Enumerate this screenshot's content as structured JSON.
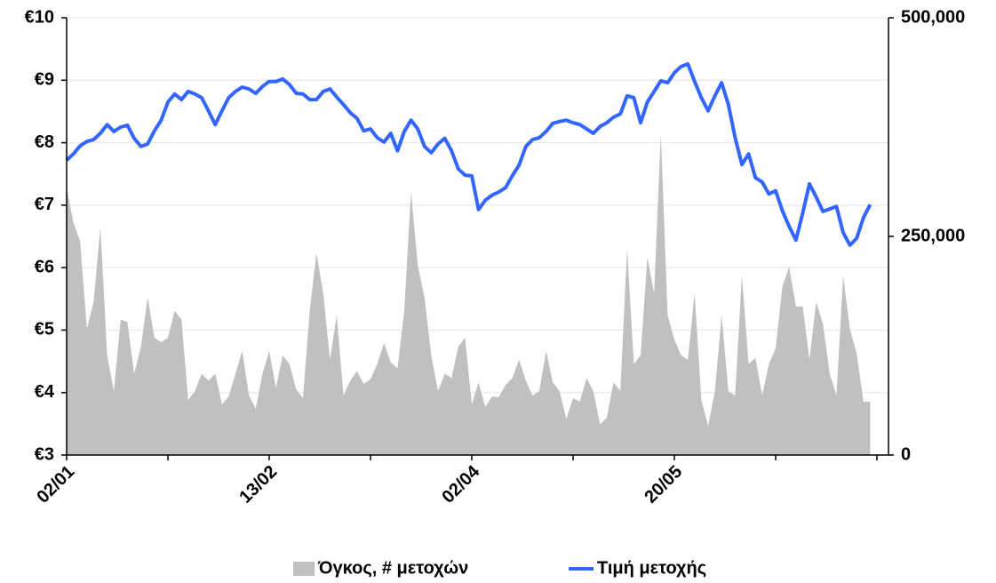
{
  "chart_data": {
    "type": "line",
    "categories": [
      "02/01",
      null,
      null,
      null,
      null,
      null,
      null,
      null,
      null,
      null,
      null,
      null,
      null,
      null,
      null,
      null,
      null,
      null,
      null,
      null,
      null,
      null,
      null,
      null,
      null,
      null,
      null,
      null,
      null,
      null,
      "13/02",
      null,
      null,
      null,
      null,
      null,
      null,
      null,
      null,
      null,
      null,
      null,
      null,
      null,
      null,
      null,
      null,
      null,
      null,
      null,
      null,
      null,
      null,
      null,
      null,
      null,
      null,
      null,
      null,
      null,
      "02/04",
      null,
      null,
      null,
      null,
      null,
      null,
      null,
      null,
      null,
      null,
      null,
      null,
      null,
      null,
      null,
      null,
      null,
      null,
      null,
      null,
      null,
      null,
      null,
      null,
      null,
      null,
      null,
      null,
      null,
      "20/05",
      null,
      null,
      null,
      null,
      null,
      null,
      null,
      null,
      null,
      null,
      null,
      null,
      null,
      null,
      null,
      null,
      null,
      null,
      null,
      null,
      null,
      null,
      null,
      null,
      null,
      null,
      null,
      null,
      null
    ],
    "series": [
      {
        "name": "Όγκος, # μετοχών",
        "type": "area",
        "axis": "y2",
        "color": "#c0c0c0",
        "values": [
          305000,
          266000,
          244000,
          144000,
          175000,
          261000,
          114000,
          73000,
          155000,
          152000,
          93000,
          124000,
          180000,
          134000,
          129000,
          134000,
          165000,
          155000,
          63000,
          73000,
          93000,
          85000,
          93000,
          58000,
          67000,
          93000,
          119000,
          68000,
          53000,
          93000,
          119000,
          77000,
          114000,
          104000,
          75000,
          65000,
          165000,
          231000,
          185000,
          109000,
          160000,
          68000,
          85000,
          96000,
          81000,
          87000,
          104000,
          128000,
          106000,
          99000,
          165000,
          302000,
          217000,
          180000,
          114000,
          73000,
          93000,
          88000,
          124000,
          134000,
          58000,
          83000,
          55000,
          67000,
          66000,
          80000,
          88000,
          109000,
          85000,
          68000,
          73000,
          119000,
          83000,
          73000,
          41000,
          65000,
          61000,
          88000,
          73000,
          35000,
          43000,
          83000,
          73000,
          236000,
          104000,
          114000,
          226000,
          185000,
          368000,
          160000,
          132000,
          114000,
          109000,
          185000,
          63000,
          33000,
          73000,
          160000,
          73000,
          68000,
          205000,
          104000,
          111000,
          68000,
          104000,
          122000,
          193000,
          215000,
          170000,
          170000,
          109000,
          175000,
          150000,
          93000,
          68000,
          205000,
          144000,
          116000,
          61000,
          61000
        ]
      },
      {
        "name": "Τιμή μετοχής",
        "type": "line",
        "color": "#3366ff",
        "values": [
          7.72,
          7.82,
          7.95,
          8.02,
          8.05,
          8.15,
          8.29,
          8.18,
          8.25,
          8.28,
          8.07,
          7.94,
          7.98,
          8.19,
          8.36,
          8.65,
          8.78,
          8.69,
          8.82,
          8.78,
          8.72,
          8.51,
          8.29,
          8.51,
          8.72,
          8.82,
          8.89,
          8.86,
          8.79,
          8.9,
          8.98,
          8.98,
          9.02,
          8.93,
          8.79,
          8.78,
          8.69,
          8.69,
          8.82,
          8.86,
          8.73,
          8.61,
          8.48,
          8.39,
          8.19,
          8.22,
          8.08,
          8.01,
          8.15,
          7.87,
          8.18,
          8.36,
          8.22,
          7.94,
          7.84,
          7.98,
          8.07,
          7.87,
          7.58,
          7.48,
          7.47,
          6.93,
          7.08,
          7.16,
          7.21,
          7.28,
          7.47,
          7.64,
          7.94,
          8.05,
          8.08,
          8.18,
          8.31,
          8.34,
          8.36,
          8.32,
          8.29,
          8.22,
          8.15,
          8.26,
          8.32,
          8.41,
          8.46,
          8.75,
          8.72,
          8.32,
          8.65,
          8.82,
          8.99,
          8.96,
          9.12,
          9.22,
          9.26,
          8.98,
          8.72,
          8.51,
          8.75,
          8.96,
          8.61,
          8.08,
          7.65,
          7.82,
          7.44,
          7.37,
          7.18,
          7.23,
          6.91,
          6.66,
          6.44,
          6.87,
          7.34,
          7.13,
          6.9,
          6.94,
          6.98,
          6.56,
          6.36,
          6.47,
          6.8,
          7.01
        ]
      }
    ],
    "ylim": [
      3,
      10
    ],
    "yticks": [
      {
        "value": 3,
        "label": "€3"
      },
      {
        "value": 4,
        "label": "€4"
      },
      {
        "value": 5,
        "label": "€5"
      },
      {
        "value": 6,
        "label": "€6"
      },
      {
        "value": 7,
        "label": "€7"
      },
      {
        "value": 8,
        "label": "€8"
      },
      {
        "value": 9,
        "label": "€9"
      },
      {
        "value": 10,
        "label": "€10"
      }
    ],
    "y2lim": [
      0,
      500000
    ],
    "y2ticks": [
      0,
      {
        "value": 250000,
        "label": "250,000"
      },
      {
        "value": 500000,
        "label": "500,000"
      }
    ],
    "grid": true,
    "legend": "bottom"
  }
}
